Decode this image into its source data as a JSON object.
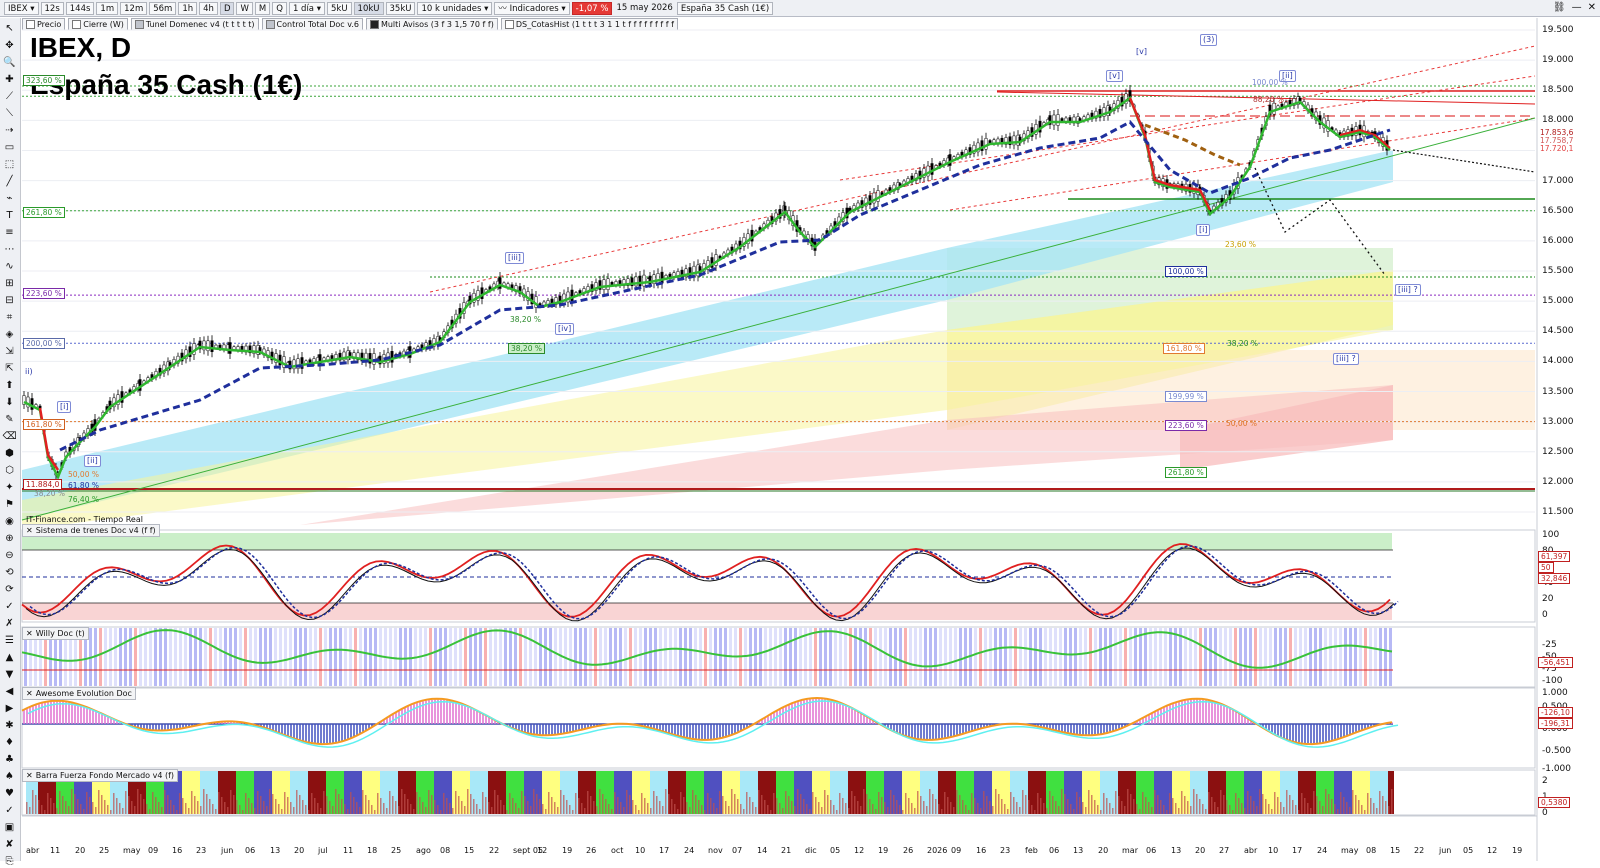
{
  "toolbar": {
    "symbol": "IBEX",
    "periods": [
      "12s",
      "144s",
      "1m",
      "12m",
      "56m",
      "1h",
      "4h",
      "D",
      "W",
      "M",
      "Q"
    ],
    "active_period": "D",
    "interval": "1 día",
    "units_options": [
      "5kU",
      "10kU",
      "35kU"
    ],
    "active_units": "10kU",
    "units": "10 k unidades",
    "indicators": "Indicadores",
    "change": "-1,07 %",
    "date": "15 may 2026",
    "instrument": "España 35 Cash (1€)"
  },
  "indicators": [
    {
      "label": "Precio",
      "color": "#ffffff"
    },
    {
      "label": "Cierre (W)",
      "color": "#ffffff"
    },
    {
      "label": "Tunel Domenec v4 (t t t t t)",
      "color": "#c0c4cc"
    },
    {
      "label": "Control Total Doc v.6",
      "color": "#c0c4cc"
    },
    {
      "label": "Multi Avisos (3 f 3 1,5 70 f f)",
      "color": "#222222"
    },
    {
      "label": "DS_CotasHist (1 t t t 3 1 1 t f f f f f f f f f",
      "color": "#ffffff"
    }
  ],
  "chart": {
    "title": "IBEX, D",
    "subtitle": "España 35 Cash (1€)",
    "source": "IT-Finance.com - Tiempo Real",
    "y_axis": [
      "19.500",
      "19.000",
      "18.500",
      "18.000",
      "17.500",
      "17.000",
      "16.500",
      "16.000",
      "15.500",
      "15.000",
      "14.500",
      "14.000",
      "13.500",
      "13.000",
      "12.500",
      "12.000",
      "11.500"
    ],
    "price_tags": [
      {
        "text": "17.853,6",
        "color": "#b01b1b"
      },
      {
        "text": "17.758,7",
        "color": "#d05555"
      },
      {
        "text": "17.720,1",
        "color": "#e04040"
      }
    ],
    "left_tags": [
      {
        "text": "323,60 %",
        "color": "#2a8a2a"
      },
      {
        "text": "261,80 %",
        "color": "#2a9a2a"
      },
      {
        "text": "223,60 %",
        "color": "#7a2aa8"
      },
      {
        "text": "200,00 %",
        "color": "#5a6aa8"
      },
      {
        "text": "161,80 %",
        "color": "#d06020"
      },
      {
        "text": "11.884,0",
        "color": "#b01b1b"
      }
    ],
    "waves": [
      "[v]",
      "(3)",
      "[v]",
      "[ii]",
      "[iii]",
      "[iv]",
      "[i]",
      "[ii]",
      "[i]",
      "[iii] ?",
      "[iii] ?",
      "ii)"
    ],
    "fib_labels": [
      "100,00 %",
      "23,60 %",
      "38,20 %",
      "161,80 %",
      "38,20 %",
      "199,99 %",
      "223,60 %",
      "50,00 %",
      "261,80 %",
      "88,20 %",
      "100,00 %",
      "50,00 %",
      "61,80 %",
      "38,20 %",
      "76,40 %",
      "38,20 %"
    ],
    "x_axis": [
      "abr",
      "11",
      "20",
      "25",
      "may",
      "09",
      "16",
      "23",
      "jun",
      "06",
      "13",
      "20",
      "jul",
      "11",
      "18",
      "25",
      "ago",
      "08",
      "15",
      "22",
      "sept 05",
      "12",
      "19",
      "26",
      "oct",
      "10",
      "17",
      "24",
      "nov",
      "07",
      "14",
      "21",
      "dic",
      "05",
      "12",
      "19",
      "26",
      "2026",
      "09",
      "16",
      "23",
      "feb",
      "06",
      "13",
      "20",
      "mar",
      "06",
      "13",
      "20",
      "27",
      "abr",
      "10",
      "17",
      "24",
      "may",
      "08",
      "15",
      "22",
      "jun",
      "05",
      "12",
      "19"
    ]
  },
  "panels": [
    {
      "title": "Sistema de trenes Doc v4 (f f)",
      "axis": [
        "100",
        "80",
        "60",
        "40",
        "20",
        "0"
      ],
      "tags": [
        "61,397",
        "50",
        "32,846"
      ]
    },
    {
      "title": "Willy Doc (t)",
      "axis": [
        "-25",
        "-50",
        "-75",
        "-100"
      ],
      "tags": [
        "-56,451"
      ]
    },
    {
      "title": "Awesome Evolution Doc",
      "axis": [
        "1.000",
        "0.500",
        "0.000",
        "-0.500",
        "-1.000"
      ],
      "tags": [
        "-126,10",
        "-196,31"
      ]
    },
    {
      "title": "Barra Fuerza Fondo Mercado v4 (f)",
      "axis": [
        "2",
        "1",
        "0"
      ],
      "tags": [
        "0,5380"
      ]
    }
  ],
  "colors": {
    "up": "#2fb62f",
    "down": "#e02020",
    "blue": "#1f2f9c",
    "bg_green": "#cbefc9",
    "bg_red": "#f9d4d4"
  }
}
